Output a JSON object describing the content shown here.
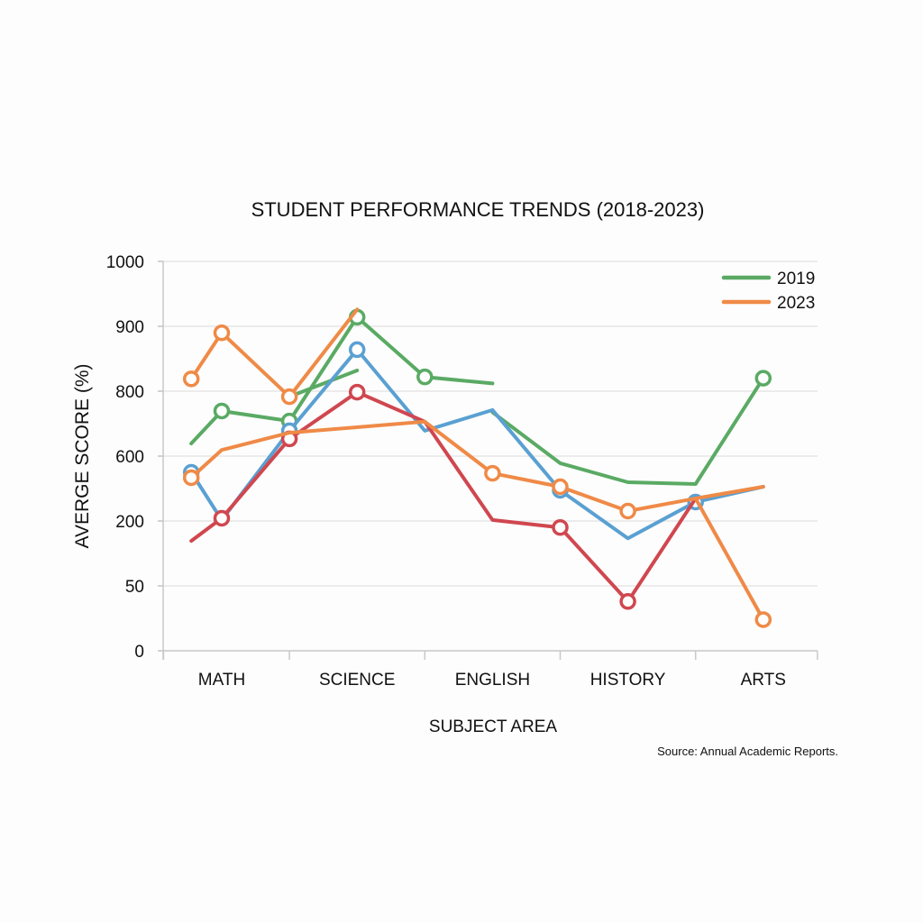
{
  "chart_data": {
    "type": "line",
    "title": "STUDENT PERFORMANCE TRENDS (2018-2023)",
    "xlabel": "SUBJECT AREA",
    "ylabel": "AVERGE SCORE (%)",
    "source": "Source: Annual Academic Reports.",
    "categories": [
      {
        "label": "MATH",
        "x": 0
      },
      {
        "label": "SCIENCE",
        "x": 2
      },
      {
        "label": "ENGLISH",
        "x": 4
      },
      {
        "label": "HISTORY",
        "x": 6
      },
      {
        "label": "ARTS",
        "x": 8
      }
    ],
    "x_range": [
      -0.86,
      8.8
    ],
    "x_tick_marks": [
      -0.86,
      1,
      3,
      5,
      7,
      8.8
    ],
    "y_ticks": [
      0,
      50,
      200,
      600,
      800,
      900,
      1000
    ],
    "y_ticks_evenly_spaced": true,
    "grid": true,
    "legend": {
      "placement": "top-right",
      "entries": [
        {
          "label": "2019",
          "color": "#5aaa64"
        },
        {
          "label": "2023",
          "color": "#ef8a47"
        }
      ]
    },
    "series": [
      {
        "name": "green-a",
        "color": "#5aaa64",
        "points": [
          [
            -0.45,
            639
          ],
          [
            0,
            739
          ],
          [
            1,
            708
          ],
          [
            2,
            914
          ],
          [
            3,
            822
          ],
          [
            4,
            812
          ]
        ],
        "markers": [
          1,
          2,
          3,
          4
        ]
      },
      {
        "name": "green-b",
        "color": "#5aaa64",
        "points": [
          [
            1,
            783
          ],
          [
            2,
            832
          ]
        ],
        "markers": []
      },
      {
        "name": "green-c",
        "color": "#5aaa64",
        "points": [
          [
            4,
            735
          ],
          [
            5,
            556
          ],
          [
            6,
            439
          ],
          [
            7,
            428
          ],
          [
            8,
            820
          ]
        ],
        "markers": [
          4,
          5,
          6,
          7,
          8
        ]
      },
      {
        "name": "blue",
        "color": "#5aa0d2",
        "points": [
          [
            -0.45,
            500
          ],
          [
            0,
            206
          ],
          [
            1,
            678
          ],
          [
            2,
            864
          ],
          [
            3,
            678
          ],
          [
            4,
            742
          ],
          [
            5,
            389
          ],
          [
            6,
            160
          ],
          [
            7,
            317
          ],
          [
            8,
            411
          ]
        ],
        "markers": [
          0,
          2,
          3,
          6,
          8
        ]
      },
      {
        "name": "red",
        "color": "#d0474f",
        "points": [
          [
            -0.45,
            154
          ],
          [
            0,
            217
          ],
          [
            1,
            653
          ],
          [
            2,
            797
          ],
          [
            3,
            706
          ],
          [
            4,
            206
          ],
          [
            5,
            185
          ],
          [
            6,
            38
          ],
          [
            7,
            339
          ]
        ],
        "markers": [
          1,
          2,
          3,
          6,
          7
        ]
      },
      {
        "name": "orange-a",
        "color": "#ef8a47",
        "points": [
          [
            -0.45,
            819
          ],
          [
            0,
            890
          ],
          [
            1,
            783
          ],
          [
            2,
            926
          ]
        ],
        "markers": [
          0,
          1,
          2
        ]
      },
      {
        "name": "orange-b",
        "color": "#ef8a47",
        "points": [
          [
            -0.45,
            467
          ],
          [
            0,
            619
          ],
          [
            1,
            672
          ],
          [
            3,
            706
          ],
          [
            4,
            494
          ],
          [
            5,
            411
          ],
          [
            6,
            261
          ],
          [
            7,
            339
          ],
          [
            8,
            411
          ]
        ],
        "markers": [
          0,
          4,
          5,
          6
        ]
      },
      {
        "name": "orange-c",
        "color": "#ef8a47",
        "points": [
          [
            7,
            339
          ],
          [
            8,
            24
          ]
        ],
        "markers": [
          1
        ]
      }
    ]
  }
}
